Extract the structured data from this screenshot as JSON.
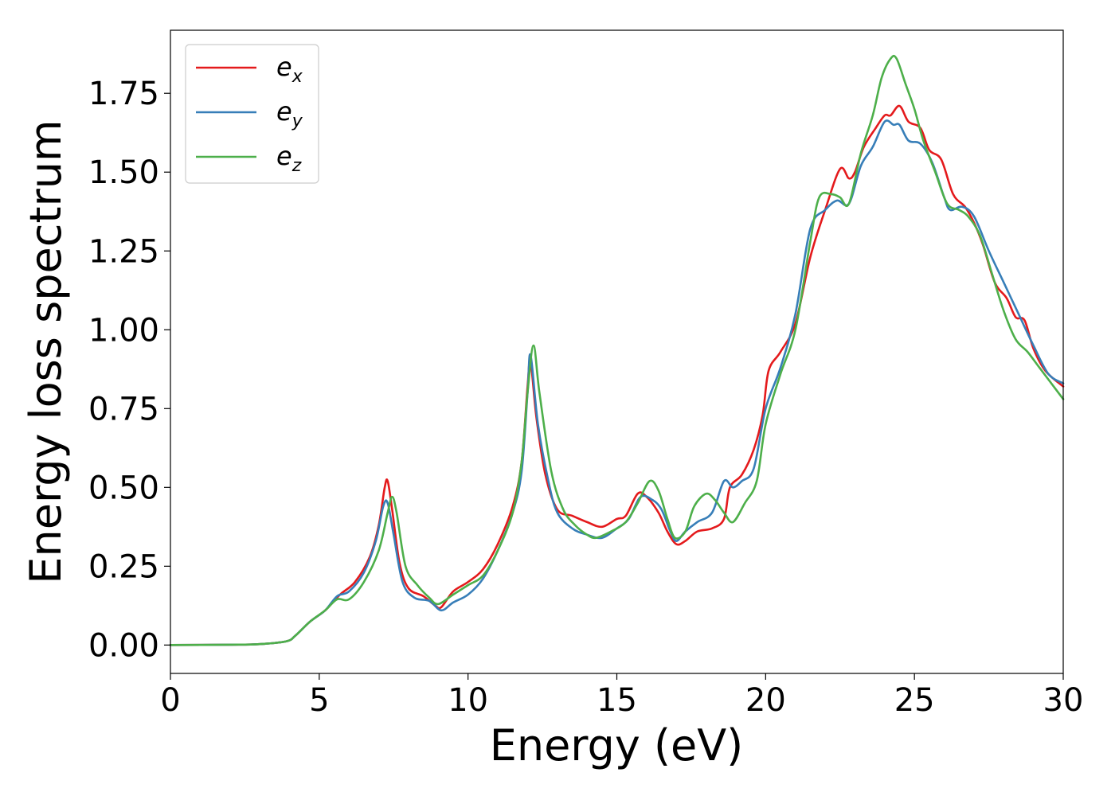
{
  "chart_data": {
    "type": "line",
    "xlabel": "Energy (eV)",
    "ylabel": "Energy loss spectrum",
    "xlim": [
      0,
      30
    ],
    "ylim": [
      -0.09,
      1.95
    ],
    "xticks": [
      0,
      5,
      10,
      15,
      20,
      25,
      30
    ],
    "xtick_labels": [
      "0",
      "5",
      "10",
      "15",
      "20",
      "25",
      "30"
    ],
    "yticks": [
      0.0,
      0.25,
      0.5,
      0.75,
      1.0,
      1.25,
      1.5,
      1.75
    ],
    "ytick_labels": [
      "0.00",
      "0.25",
      "0.50",
      "0.75",
      "1.00",
      "1.25",
      "1.50",
      "1.75"
    ],
    "grid": false,
    "legend_position": "top-left",
    "series": [
      {
        "name": "e_x",
        "label_base": "e",
        "label_sub": "x",
        "color": "#e41a1c",
        "points": [
          [
            0,
            0.0
          ],
          [
            2,
            0.001
          ],
          [
            3,
            0.003
          ],
          [
            3.9,
            0.012
          ],
          [
            4.2,
            0.03
          ],
          [
            4.7,
            0.075
          ],
          [
            5.2,
            0.11
          ],
          [
            5.7,
            0.16
          ],
          [
            6.2,
            0.2
          ],
          [
            6.7,
            0.28
          ],
          [
            7.0,
            0.38
          ],
          [
            7.2,
            0.5
          ],
          [
            7.3,
            0.52
          ],
          [
            7.45,
            0.43
          ],
          [
            7.7,
            0.26
          ],
          [
            8.0,
            0.18
          ],
          [
            8.5,
            0.155
          ],
          [
            8.9,
            0.125
          ],
          [
            9.1,
            0.12
          ],
          [
            9.5,
            0.17
          ],
          [
            10.0,
            0.2
          ],
          [
            10.5,
            0.24
          ],
          [
            11.0,
            0.32
          ],
          [
            11.5,
            0.44
          ],
          [
            11.8,
            0.58
          ],
          [
            12.0,
            0.82
          ],
          [
            12.1,
            0.9
          ],
          [
            12.3,
            0.72
          ],
          [
            12.6,
            0.54
          ],
          [
            13.0,
            0.43
          ],
          [
            13.5,
            0.41
          ],
          [
            14.0,
            0.39
          ],
          [
            14.5,
            0.375
          ],
          [
            15.0,
            0.4
          ],
          [
            15.3,
            0.41
          ],
          [
            15.7,
            0.48
          ],
          [
            16.0,
            0.47
          ],
          [
            16.4,
            0.42
          ],
          [
            16.7,
            0.36
          ],
          [
            17.0,
            0.32
          ],
          [
            17.3,
            0.33
          ],
          [
            17.7,
            0.36
          ],
          [
            18.2,
            0.37
          ],
          [
            18.6,
            0.4
          ],
          [
            18.8,
            0.5
          ],
          [
            19.2,
            0.54
          ],
          [
            19.6,
            0.62
          ],
          [
            19.9,
            0.73
          ],
          [
            20.1,
            0.87
          ],
          [
            20.5,
            0.93
          ],
          [
            21.0,
            1.02
          ],
          [
            21.5,
            1.23
          ],
          [
            22.0,
            1.38
          ],
          [
            22.5,
            1.51
          ],
          [
            22.8,
            1.48
          ],
          [
            23.0,
            1.5
          ],
          [
            23.3,
            1.58
          ],
          [
            23.7,
            1.64
          ],
          [
            24.0,
            1.68
          ],
          [
            24.2,
            1.68
          ],
          [
            24.5,
            1.71
          ],
          [
            24.8,
            1.66
          ],
          [
            25.2,
            1.64
          ],
          [
            25.5,
            1.57
          ],
          [
            25.9,
            1.54
          ],
          [
            26.3,
            1.43
          ],
          [
            26.7,
            1.39
          ],
          [
            27.0,
            1.34
          ],
          [
            27.3,
            1.27
          ],
          [
            27.7,
            1.15
          ],
          [
            28.1,
            1.1
          ],
          [
            28.4,
            1.04
          ],
          [
            28.7,
            1.03
          ],
          [
            29.0,
            0.94
          ],
          [
            29.4,
            0.87
          ],
          [
            30.0,
            0.82
          ]
        ]
      },
      {
        "name": "e_y",
        "label_base": "e",
        "label_sub": "y",
        "color": "#377eb8",
        "points": [
          [
            0,
            0.0
          ],
          [
            2,
            0.001
          ],
          [
            3,
            0.003
          ],
          [
            3.9,
            0.012
          ],
          [
            4.2,
            0.03
          ],
          [
            4.7,
            0.075
          ],
          [
            5.2,
            0.11
          ],
          [
            5.6,
            0.155
          ],
          [
            6.0,
            0.17
          ],
          [
            6.5,
            0.23
          ],
          [
            6.9,
            0.33
          ],
          [
            7.15,
            0.44
          ],
          [
            7.3,
            0.45
          ],
          [
            7.5,
            0.35
          ],
          [
            7.8,
            0.2
          ],
          [
            8.2,
            0.15
          ],
          [
            8.7,
            0.14
          ],
          [
            9.1,
            0.11
          ],
          [
            9.5,
            0.135
          ],
          [
            10.0,
            0.16
          ],
          [
            10.5,
            0.21
          ],
          [
            11.0,
            0.3
          ],
          [
            11.5,
            0.42
          ],
          [
            11.8,
            0.55
          ],
          [
            12.0,
            0.8
          ],
          [
            12.1,
            0.92
          ],
          [
            12.35,
            0.7
          ],
          [
            12.7,
            0.52
          ],
          [
            13.0,
            0.42
          ],
          [
            13.5,
            0.37
          ],
          [
            14.0,
            0.35
          ],
          [
            14.5,
            0.34
          ],
          [
            15.0,
            0.37
          ],
          [
            15.4,
            0.4
          ],
          [
            15.8,
            0.47
          ],
          [
            16.2,
            0.46
          ],
          [
            16.5,
            0.43
          ],
          [
            16.8,
            0.36
          ],
          [
            17.0,
            0.33
          ],
          [
            17.3,
            0.36
          ],
          [
            17.7,
            0.39
          ],
          [
            18.2,
            0.42
          ],
          [
            18.6,
            0.52
          ],
          [
            18.9,
            0.5
          ],
          [
            19.2,
            0.52
          ],
          [
            19.6,
            0.56
          ],
          [
            20.0,
            0.75
          ],
          [
            20.5,
            0.88
          ],
          [
            21.0,
            1.05
          ],
          [
            21.5,
            1.32
          ],
          [
            22.0,
            1.38
          ],
          [
            22.4,
            1.41
          ],
          [
            22.8,
            1.4
          ],
          [
            23.2,
            1.52
          ],
          [
            23.6,
            1.58
          ],
          [
            24.0,
            1.66
          ],
          [
            24.3,
            1.65
          ],
          [
            24.5,
            1.65
          ],
          [
            24.8,
            1.6
          ],
          [
            25.2,
            1.59
          ],
          [
            25.6,
            1.53
          ],
          [
            26.0,
            1.42
          ],
          [
            26.2,
            1.38
          ],
          [
            26.6,
            1.39
          ],
          [
            27.0,
            1.36
          ],
          [
            27.5,
            1.25
          ],
          [
            28.0,
            1.15
          ],
          [
            28.5,
            1.05
          ],
          [
            29.0,
            0.95
          ],
          [
            29.5,
            0.86
          ],
          [
            30.0,
            0.83
          ]
        ]
      },
      {
        "name": "e_z",
        "label_base": "e",
        "label_sub": "z",
        "color": "#4daf4a",
        "points": [
          [
            0,
            0.0
          ],
          [
            2,
            0.001
          ],
          [
            3,
            0.003
          ],
          [
            3.9,
            0.012
          ],
          [
            4.2,
            0.03
          ],
          [
            4.7,
            0.075
          ],
          [
            5.2,
            0.11
          ],
          [
            5.6,
            0.145
          ],
          [
            6.0,
            0.145
          ],
          [
            6.5,
            0.2
          ],
          [
            7.0,
            0.3
          ],
          [
            7.3,
            0.42
          ],
          [
            7.45,
            0.47
          ],
          [
            7.6,
            0.42
          ],
          [
            7.9,
            0.25
          ],
          [
            8.3,
            0.19
          ],
          [
            8.7,
            0.15
          ],
          [
            9.0,
            0.13
          ],
          [
            9.5,
            0.16
          ],
          [
            10.0,
            0.19
          ],
          [
            10.5,
            0.22
          ],
          [
            11.0,
            0.3
          ],
          [
            11.5,
            0.42
          ],
          [
            11.8,
            0.58
          ],
          [
            12.0,
            0.8
          ],
          [
            12.2,
            0.95
          ],
          [
            12.4,
            0.8
          ],
          [
            12.8,
            0.55
          ],
          [
            13.2,
            0.43
          ],
          [
            13.6,
            0.38
          ],
          [
            14.0,
            0.35
          ],
          [
            14.3,
            0.34
          ],
          [
            14.8,
            0.36
          ],
          [
            15.3,
            0.39
          ],
          [
            15.7,
            0.45
          ],
          [
            16.1,
            0.52
          ],
          [
            16.4,
            0.49
          ],
          [
            16.7,
            0.4
          ],
          [
            16.95,
            0.34
          ],
          [
            17.3,
            0.36
          ],
          [
            17.6,
            0.44
          ],
          [
            18.0,
            0.48
          ],
          [
            18.3,
            0.46
          ],
          [
            18.6,
            0.42
          ],
          [
            18.9,
            0.39
          ],
          [
            19.3,
            0.45
          ],
          [
            19.7,
            0.52
          ],
          [
            20.0,
            0.7
          ],
          [
            20.5,
            0.86
          ],
          [
            21.0,
            1.0
          ],
          [
            21.5,
            1.28
          ],
          [
            21.8,
            1.42
          ],
          [
            22.2,
            1.43
          ],
          [
            22.5,
            1.42
          ],
          [
            22.8,
            1.4
          ],
          [
            23.2,
            1.56
          ],
          [
            23.6,
            1.68
          ],
          [
            23.9,
            1.8
          ],
          [
            24.2,
            1.86
          ],
          [
            24.4,
            1.86
          ],
          [
            24.7,
            1.78
          ],
          [
            25.0,
            1.7
          ],
          [
            25.3,
            1.6
          ],
          [
            25.7,
            1.5
          ],
          [
            26.1,
            1.4
          ],
          [
            26.5,
            1.38
          ],
          [
            26.8,
            1.36
          ],
          [
            27.2,
            1.3
          ],
          [
            27.6,
            1.18
          ],
          [
            28.0,
            1.06
          ],
          [
            28.4,
            0.97
          ],
          [
            28.8,
            0.93
          ],
          [
            29.2,
            0.88
          ],
          [
            29.6,
            0.83
          ],
          [
            30.0,
            0.78
          ]
        ]
      }
    ]
  }
}
